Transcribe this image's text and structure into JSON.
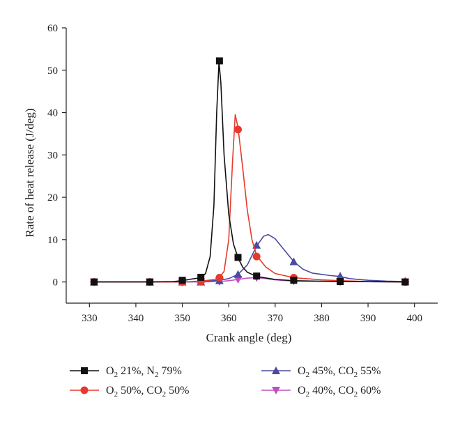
{
  "chart_data": {
    "type": "line",
    "title": "",
    "xlabel": "Crank angle (deg)",
    "ylabel": "Rate of heat release (J/deg)",
    "xlim": [
      325,
      405
    ],
    "ylim": [
      -5,
      60
    ],
    "xticks": [
      330,
      340,
      350,
      360,
      370,
      380,
      390,
      400
    ],
    "yticks": [
      0,
      10,
      20,
      30,
      40,
      50,
      60
    ],
    "grid": false,
    "legend_position": "bottom",
    "series": [
      {
        "name_parts": [
          "O",
          "2",
          " 21%, N",
          "2",
          " 79%"
        ],
        "color": "#111111",
        "marker": "square",
        "curve": [
          [
            331,
            0
          ],
          [
            343,
            0
          ],
          [
            348,
            0.1
          ],
          [
            350,
            0.3
          ],
          [
            352,
            0.7
          ],
          [
            354,
            1.0
          ],
          [
            355,
            2.0
          ],
          [
            356,
            6
          ],
          [
            356.8,
            18
          ],
          [
            357.4,
            40
          ],
          [
            357.9,
            52
          ],
          [
            358.3,
            47
          ],
          [
            359,
            30
          ],
          [
            360,
            16
          ],
          [
            361,
            9
          ],
          [
            362,
            5.7
          ],
          [
            363,
            3.5
          ],
          [
            364,
            2.3
          ],
          [
            366,
            1.3
          ],
          [
            370,
            0.6
          ],
          [
            374,
            0.3
          ],
          [
            384,
            0.1
          ],
          [
            398,
            0
          ]
        ],
        "markers": [
          [
            331,
            0
          ],
          [
            343,
            0
          ],
          [
            350,
            0.4
          ],
          [
            354,
            1.1
          ],
          [
            358,
            52.2
          ],
          [
            362,
            5.8
          ],
          [
            366,
            1.4
          ],
          [
            374,
            0.4
          ],
          [
            384,
            0.1
          ],
          [
            398,
            0
          ]
        ]
      },
      {
        "name_parts": [
          "O",
          "2",
          " 50%, CO",
          "2",
          " 50%"
        ],
        "color": "#e83a2b",
        "marker": "circle",
        "curve": [
          [
            331,
            0
          ],
          [
            343,
            0
          ],
          [
            350,
            0
          ],
          [
            354,
            0.2
          ],
          [
            357,
            0.6
          ],
          [
            358,
            1.0
          ],
          [
            359,
            2.5
          ],
          [
            360,
            10
          ],
          [
            360.8,
            28
          ],
          [
            361.4,
            39.5
          ],
          [
            362,
            36.5
          ],
          [
            363,
            27
          ],
          [
            364,
            17
          ],
          [
            365,
            10
          ],
          [
            366,
            6.2
          ],
          [
            368,
            3.5
          ],
          [
            370,
            2.0
          ],
          [
            374,
            1.0
          ],
          [
            380,
            0.5
          ],
          [
            384,
            0.3
          ],
          [
            390,
            0.1
          ],
          [
            398,
            0
          ]
        ],
        "markers": [
          [
            331,
            0
          ],
          [
            343,
            0
          ],
          [
            350,
            0
          ],
          [
            354,
            0.1
          ],
          [
            358,
            1.0
          ],
          [
            362,
            36.0
          ],
          [
            366,
            6.0
          ],
          [
            374,
            1.0
          ],
          [
            384,
            0.2
          ],
          [
            398,
            0
          ]
        ]
      },
      {
        "name_parts": [
          "O",
          "2",
          " 45%, CO",
          "2",
          " 55%"
        ],
        "color": "#4a4aa3",
        "marker": "triangle-up",
        "curve": [
          [
            331,
            0
          ],
          [
            343,
            0
          ],
          [
            350,
            0
          ],
          [
            354,
            0.1
          ],
          [
            358,
            0.4
          ],
          [
            360,
            0.8
          ],
          [
            362,
            1.8
          ],
          [
            364,
            4
          ],
          [
            366,
            8.5
          ],
          [
            367.5,
            10.8
          ],
          [
            368.5,
            11.2
          ],
          [
            370,
            10.2
          ],
          [
            372,
            7.5
          ],
          [
            374,
            4.8
          ],
          [
            376,
            3.0
          ],
          [
            378,
            2.1
          ],
          [
            380,
            1.8
          ],
          [
            382,
            1.5
          ],
          [
            384,
            1.3
          ],
          [
            386,
            0.8
          ],
          [
            390,
            0.4
          ],
          [
            394,
            0.2
          ],
          [
            398,
            0.1
          ]
        ],
        "markers": [
          [
            331,
            0
          ],
          [
            343,
            0
          ],
          [
            350,
            0
          ],
          [
            354,
            0
          ],
          [
            358,
            0.3
          ],
          [
            362,
            1.8
          ],
          [
            366,
            8.7
          ],
          [
            374,
            4.8
          ],
          [
            384,
            1.4
          ],
          [
            398,
            0.2
          ]
        ]
      },
      {
        "name_parts": [
          "O",
          "2",
          " 40%, CO",
          "2",
          " 60%"
        ],
        "color": "#c050c0",
        "marker": "triangle-down",
        "curve": [
          [
            331,
            0
          ],
          [
            343,
            0
          ],
          [
            350,
            0
          ],
          [
            354,
            0
          ],
          [
            358,
            0.1
          ],
          [
            360,
            0.3
          ],
          [
            362,
            0.6
          ],
          [
            364,
            0.9
          ],
          [
            366,
            1.0
          ],
          [
            368,
            0.8
          ],
          [
            370,
            0.5
          ],
          [
            374,
            0.2
          ],
          [
            384,
            0.1
          ],
          [
            398,
            0
          ]
        ],
        "markers": [
          [
            331,
            0
          ],
          [
            343,
            0
          ],
          [
            350,
            0
          ],
          [
            354,
            0
          ],
          [
            358,
            0.1
          ],
          [
            362,
            0.6
          ],
          [
            366,
            1.0
          ],
          [
            374,
            0.2
          ],
          [
            384,
            0
          ],
          [
            398,
            0
          ]
        ]
      }
    ]
  }
}
